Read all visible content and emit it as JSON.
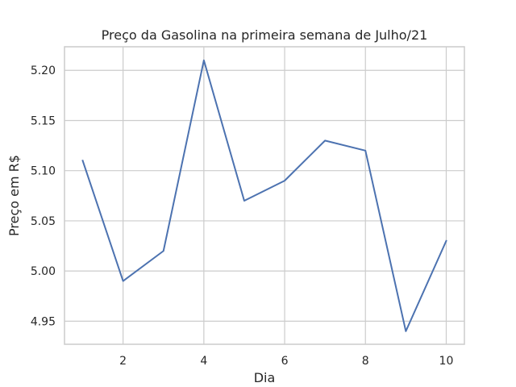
{
  "chart_data": {
    "type": "line",
    "title": "Preço da Gasolina na primeira semana de Julho/21",
    "xlabel": "Dia",
    "ylabel": "Preço em R$",
    "grid": true,
    "xlim": [
      0.55,
      10.45
    ],
    "ylim": [
      4.927,
      5.2235
    ],
    "x_ticks": [
      2,
      4,
      6,
      8,
      10
    ],
    "x_tick_labels": [
      "2",
      "4",
      "6",
      "8",
      "10"
    ],
    "y_ticks": [
      4.95,
      5.0,
      5.05,
      5.1,
      5.15,
      5.2
    ],
    "y_tick_labels": [
      "4.95",
      "5.00",
      "5.05",
      "5.10",
      "5.15",
      "5.20"
    ],
    "series": [
      {
        "color": "#4c72b0",
        "x": [
          1,
          2,
          3,
          4,
          5,
          6,
          7,
          8,
          9,
          10
        ],
        "y": [
          5.11,
          4.99,
          5.02,
          5.21,
          5.07,
          5.09,
          5.13,
          5.12,
          4.94,
          5.03
        ]
      }
    ],
    "colors": {
      "grid": "#cccccc",
      "spine": "#cccccc",
      "line": "#4c72b0",
      "text": "#262626"
    }
  }
}
